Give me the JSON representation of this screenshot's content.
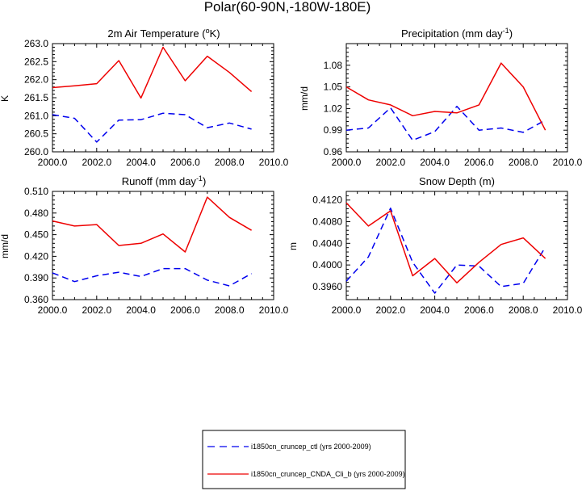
{
  "figure": {
    "title": "Polar(60-90N,-180W-180E)"
  },
  "colors": {
    "ctl": "#0000ee",
    "cnda": "#ee0000",
    "axis": "#000000"
  },
  "legend": {
    "entries": [
      {
        "series": "ctl",
        "label": "i1850cn_cruncep_ctl (yrs 2000-2009)"
      },
      {
        "series": "cnda",
        "label": "i1850cn_cruncep_CNDA_Cli_b (yrs 2000-2009)"
      }
    ]
  },
  "chart_data": [
    {
      "type": "line",
      "title_main": "2m Air Temperature (",
      "title_sup": "o",
      "title_tail": "K)",
      "ylabel": "K",
      "xlim": [
        2000,
        2010
      ],
      "ylim": [
        260.0,
        263.0
      ],
      "xticks": [
        "2000.0",
        "2002.0",
        "2004.0",
        "2006.0",
        "2008.0",
        "2010.0"
      ],
      "yticks": [
        {
          "v": 260.0,
          "t": "260.0"
        },
        {
          "v": 260.5,
          "t": "260.5"
        },
        {
          "v": 261.0,
          "t": "261.0"
        },
        {
          "v": 261.5,
          "t": "261.5"
        },
        {
          "v": 262.0,
          "t": "262.0"
        },
        {
          "v": 262.5,
          "t": "262.5"
        },
        {
          "v": 263.0,
          "t": "263.0"
        }
      ],
      "x": [
        2000,
        2001,
        2002,
        2003,
        2004,
        2005,
        2006,
        2007,
        2008,
        2009
      ],
      "series": [
        {
          "key": "ctl",
          "style": "dashed",
          "values": [
            261.03,
            260.93,
            260.27,
            260.88,
            260.89,
            261.07,
            261.03,
            260.67,
            260.8,
            260.63
          ]
        },
        {
          "key": "cnda",
          "style": "solid",
          "values": [
            261.78,
            261.83,
            261.89,
            262.53,
            261.49,
            262.9,
            261.97,
            262.65,
            262.2,
            261.67
          ]
        }
      ]
    },
    {
      "type": "line",
      "title_main": "Precipitation (mm day",
      "title_sup": "-1",
      "title_tail": ")",
      "ylabel": "mm/d",
      "xlim": [
        2000,
        2010
      ],
      "ylim": [
        0.96,
        1.11
      ],
      "xticks": [
        "2000.0",
        "2002.0",
        "2004.0",
        "2006.0",
        "2008.0",
        "2010.0"
      ],
      "yticks": [
        {
          "v": 0.96,
          "t": "0.96"
        },
        {
          "v": 0.99,
          "t": "0.99"
        },
        {
          "v": 1.02,
          "t": "1.02"
        },
        {
          "v": 1.05,
          "t": "1.05"
        },
        {
          "v": 1.08,
          "t": "1.08"
        }
      ],
      "x": [
        2000,
        2001,
        2002,
        2003,
        2004,
        2005,
        2006,
        2007,
        2008,
        2009
      ],
      "series": [
        {
          "key": "ctl",
          "style": "dashed",
          "values": [
            0.99,
            0.993,
            1.021,
            0.976,
            0.988,
            1.023,
            0.99,
            0.993,
            0.987,
            1.004
          ]
        },
        {
          "key": "cnda",
          "style": "solid",
          "values": [
            1.05,
            1.032,
            1.025,
            1.01,
            1.016,
            1.014,
            1.025,
            1.083,
            1.05,
            0.99
          ]
        }
      ]
    },
    {
      "type": "line",
      "title_main": "Runoff (mm day",
      "title_sup": "-1",
      "title_tail": ")",
      "ylabel": "mm/d",
      "xlim": [
        2000,
        2010
      ],
      "ylim": [
        0.36,
        0.51
      ],
      "xticks": [
        "2000.0",
        "2002.0",
        "2004.0",
        "2006.0",
        "2008.0",
        "2010.0"
      ],
      "yticks": [
        {
          "v": 0.36,
          "t": "0.360"
        },
        {
          "v": 0.39,
          "t": "0.390"
        },
        {
          "v": 0.42,
          "t": "0.420"
        },
        {
          "v": 0.45,
          "t": "0.450"
        },
        {
          "v": 0.48,
          "t": "0.480"
        },
        {
          "v": 0.51,
          "t": "0.510"
        }
      ],
      "x": [
        2000,
        2001,
        2002,
        2003,
        2004,
        2005,
        2006,
        2007,
        2008,
        2009
      ],
      "series": [
        {
          "key": "ctl",
          "style": "dashed",
          "values": [
            0.397,
            0.385,
            0.393,
            0.398,
            0.392,
            0.403,
            0.403,
            0.387,
            0.379,
            0.396
          ]
        },
        {
          "key": "cnda",
          "style": "solid",
          "values": [
            0.469,
            0.462,
            0.464,
            0.435,
            0.438,
            0.451,
            0.426,
            0.502,
            0.474,
            0.456
          ]
        }
      ]
    },
    {
      "type": "line",
      "title_main": "Snow Depth (m)",
      "title_sup": "",
      "title_tail": "",
      "ylabel": "m",
      "xlim": [
        2000,
        2010
      ],
      "ylim": [
        0.3936,
        0.4136
      ],
      "xticks": [
        "2000.0",
        "2002.0",
        "2004.0",
        "2006.0",
        "2008.0",
        "2010.0"
      ],
      "yticks": [
        {
          "v": 0.396,
          "t": "0.3960"
        },
        {
          "v": 0.4,
          "t": "0.4000"
        },
        {
          "v": 0.404,
          "t": "0.4040"
        },
        {
          "v": 0.408,
          "t": "0.4080"
        },
        {
          "v": 0.412,
          "t": "0.4120"
        }
      ],
      "x": [
        2000,
        2001,
        2002,
        2003,
        2004,
        2005,
        2006,
        2007,
        2008,
        2009
      ],
      "series": [
        {
          "key": "ctl",
          "style": "dashed",
          "values": [
            0.397,
            0.4015,
            0.4105,
            0.4005,
            0.3948,
            0.4,
            0.3998,
            0.396,
            0.3966,
            0.4033
          ]
        },
        {
          "key": "cnda",
          "style": "solid",
          "values": [
            0.4115,
            0.4072,
            0.41,
            0.398,
            0.4012,
            0.3967,
            0.4005,
            0.4038,
            0.405,
            0.4012
          ]
        }
      ]
    }
  ]
}
